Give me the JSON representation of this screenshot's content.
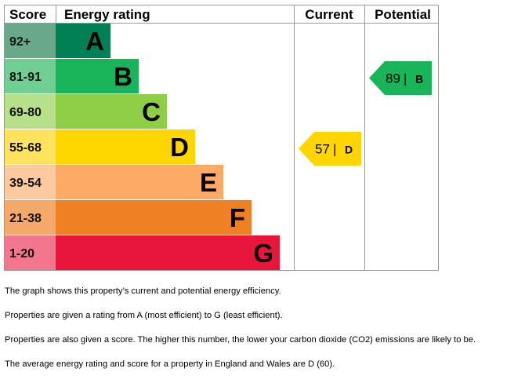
{
  "header": {
    "score": "Score",
    "energy_rating": "Energy rating",
    "current": "Current",
    "potential": "Potential"
  },
  "chart_data": {
    "type": "bar",
    "categories": [
      "92+",
      "81-91",
      "69-80",
      "55-68",
      "39-54",
      "21-38",
      "1-20"
    ],
    "bands": [
      {
        "letter": "A",
        "range": "92+",
        "color": "#008054",
        "score_color": "#6aa88a"
      },
      {
        "letter": "B",
        "range": "81-91",
        "color": "#19b459",
        "score_color": "#6fcf92"
      },
      {
        "letter": "C",
        "range": "69-80",
        "color": "#8dce46",
        "score_color": "#b8e08a"
      },
      {
        "letter": "D",
        "range": "55-68",
        "color": "#ffd500",
        "score_color": "#ffe25e"
      },
      {
        "letter": "E",
        "range": "39-54",
        "color": "#fcaa65",
        "score_color": "#fdc9a0"
      },
      {
        "letter": "F",
        "range": "21-38",
        "color": "#ef8023",
        "score_color": "#f4a96b"
      },
      {
        "letter": "G",
        "range": "1-20",
        "color": "#e9153b",
        "score_color": "#f2778e"
      }
    ],
    "current": {
      "score": 57,
      "band": "D",
      "label": "57 | D",
      "color": "#ffd500"
    },
    "potential": {
      "score": 89,
      "band": "B",
      "label": "89 | B",
      "color": "#19b459"
    }
  },
  "notes": [
    "The graph shows this property’s current and potential energy efficiency.",
    "Properties are given a rating from A (most efficient) to G (least efficient).",
    "Properties are also given a score. The higher this number, the lower your carbon dioxide (CO2) emissions are likely to be.",
    "The average energy rating and score for a property in England and Wales are D (60)."
  ]
}
